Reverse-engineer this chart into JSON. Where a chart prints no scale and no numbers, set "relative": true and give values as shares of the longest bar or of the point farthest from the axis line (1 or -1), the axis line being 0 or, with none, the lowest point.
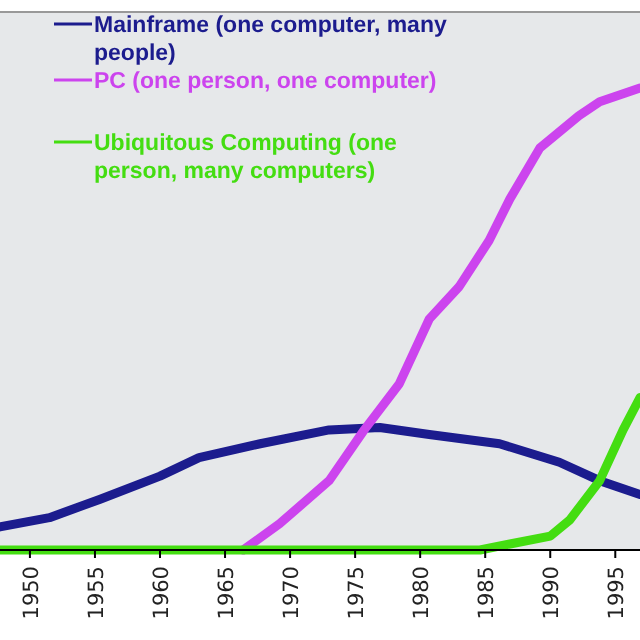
{
  "chart_data": {
    "type": "line",
    "relative": true,
    "legend": "top left",
    "xlim": [
      1947.7,
      1996.9
    ],
    "xticks": [
      1950,
      1955,
      1960,
      1965,
      1970,
      1975,
      1980,
      1985,
      1990,
      1995
    ],
    "series": [
      {
        "name": "Mainframe (one computer, many people)",
        "color": "#1c1c8e",
        "x": [
          1947.7,
          1951.5,
          1955.4,
          1960,
          1963,
          1967.7,
          1973,
          1976.9,
          1980.7,
          1986.1,
          1990.7,
          1993.8,
          1996.9
        ],
        "values": [
          0.05,
          0.07,
          0.11,
          0.16,
          0.2,
          0.23,
          0.26,
          0.265,
          0.25,
          0.23,
          0.19,
          0.15,
          0.12
        ]
      },
      {
        "name": "PC (one person, one computer)",
        "color": "#cc44ee",
        "x": [
          1966.4,
          1969.2,
          1973,
          1975.7,
          1978.4,
          1980.7,
          1983,
          1985.3,
          1986.9,
          1989.2,
          1992.2,
          1993.8,
          1996.9
        ],
        "values": [
          0,
          0.057,
          0.15,
          0.26,
          0.36,
          0.5,
          0.57,
          0.67,
          0.76,
          0.87,
          0.94,
          0.97,
          1
        ]
      },
      {
        "name": "Ubiquitous Computing (one person, many computers)",
        "color": "#44dd11",
        "x": [
          1947.7,
          1984.6,
          1986.9,
          1990,
          1991.5,
          1993.8,
          1995.6,
          1996.9
        ],
        "values": [
          0,
          0,
          0.013,
          0.03,
          0.065,
          0.15,
          0.26,
          0.33
        ]
      }
    ]
  }
}
